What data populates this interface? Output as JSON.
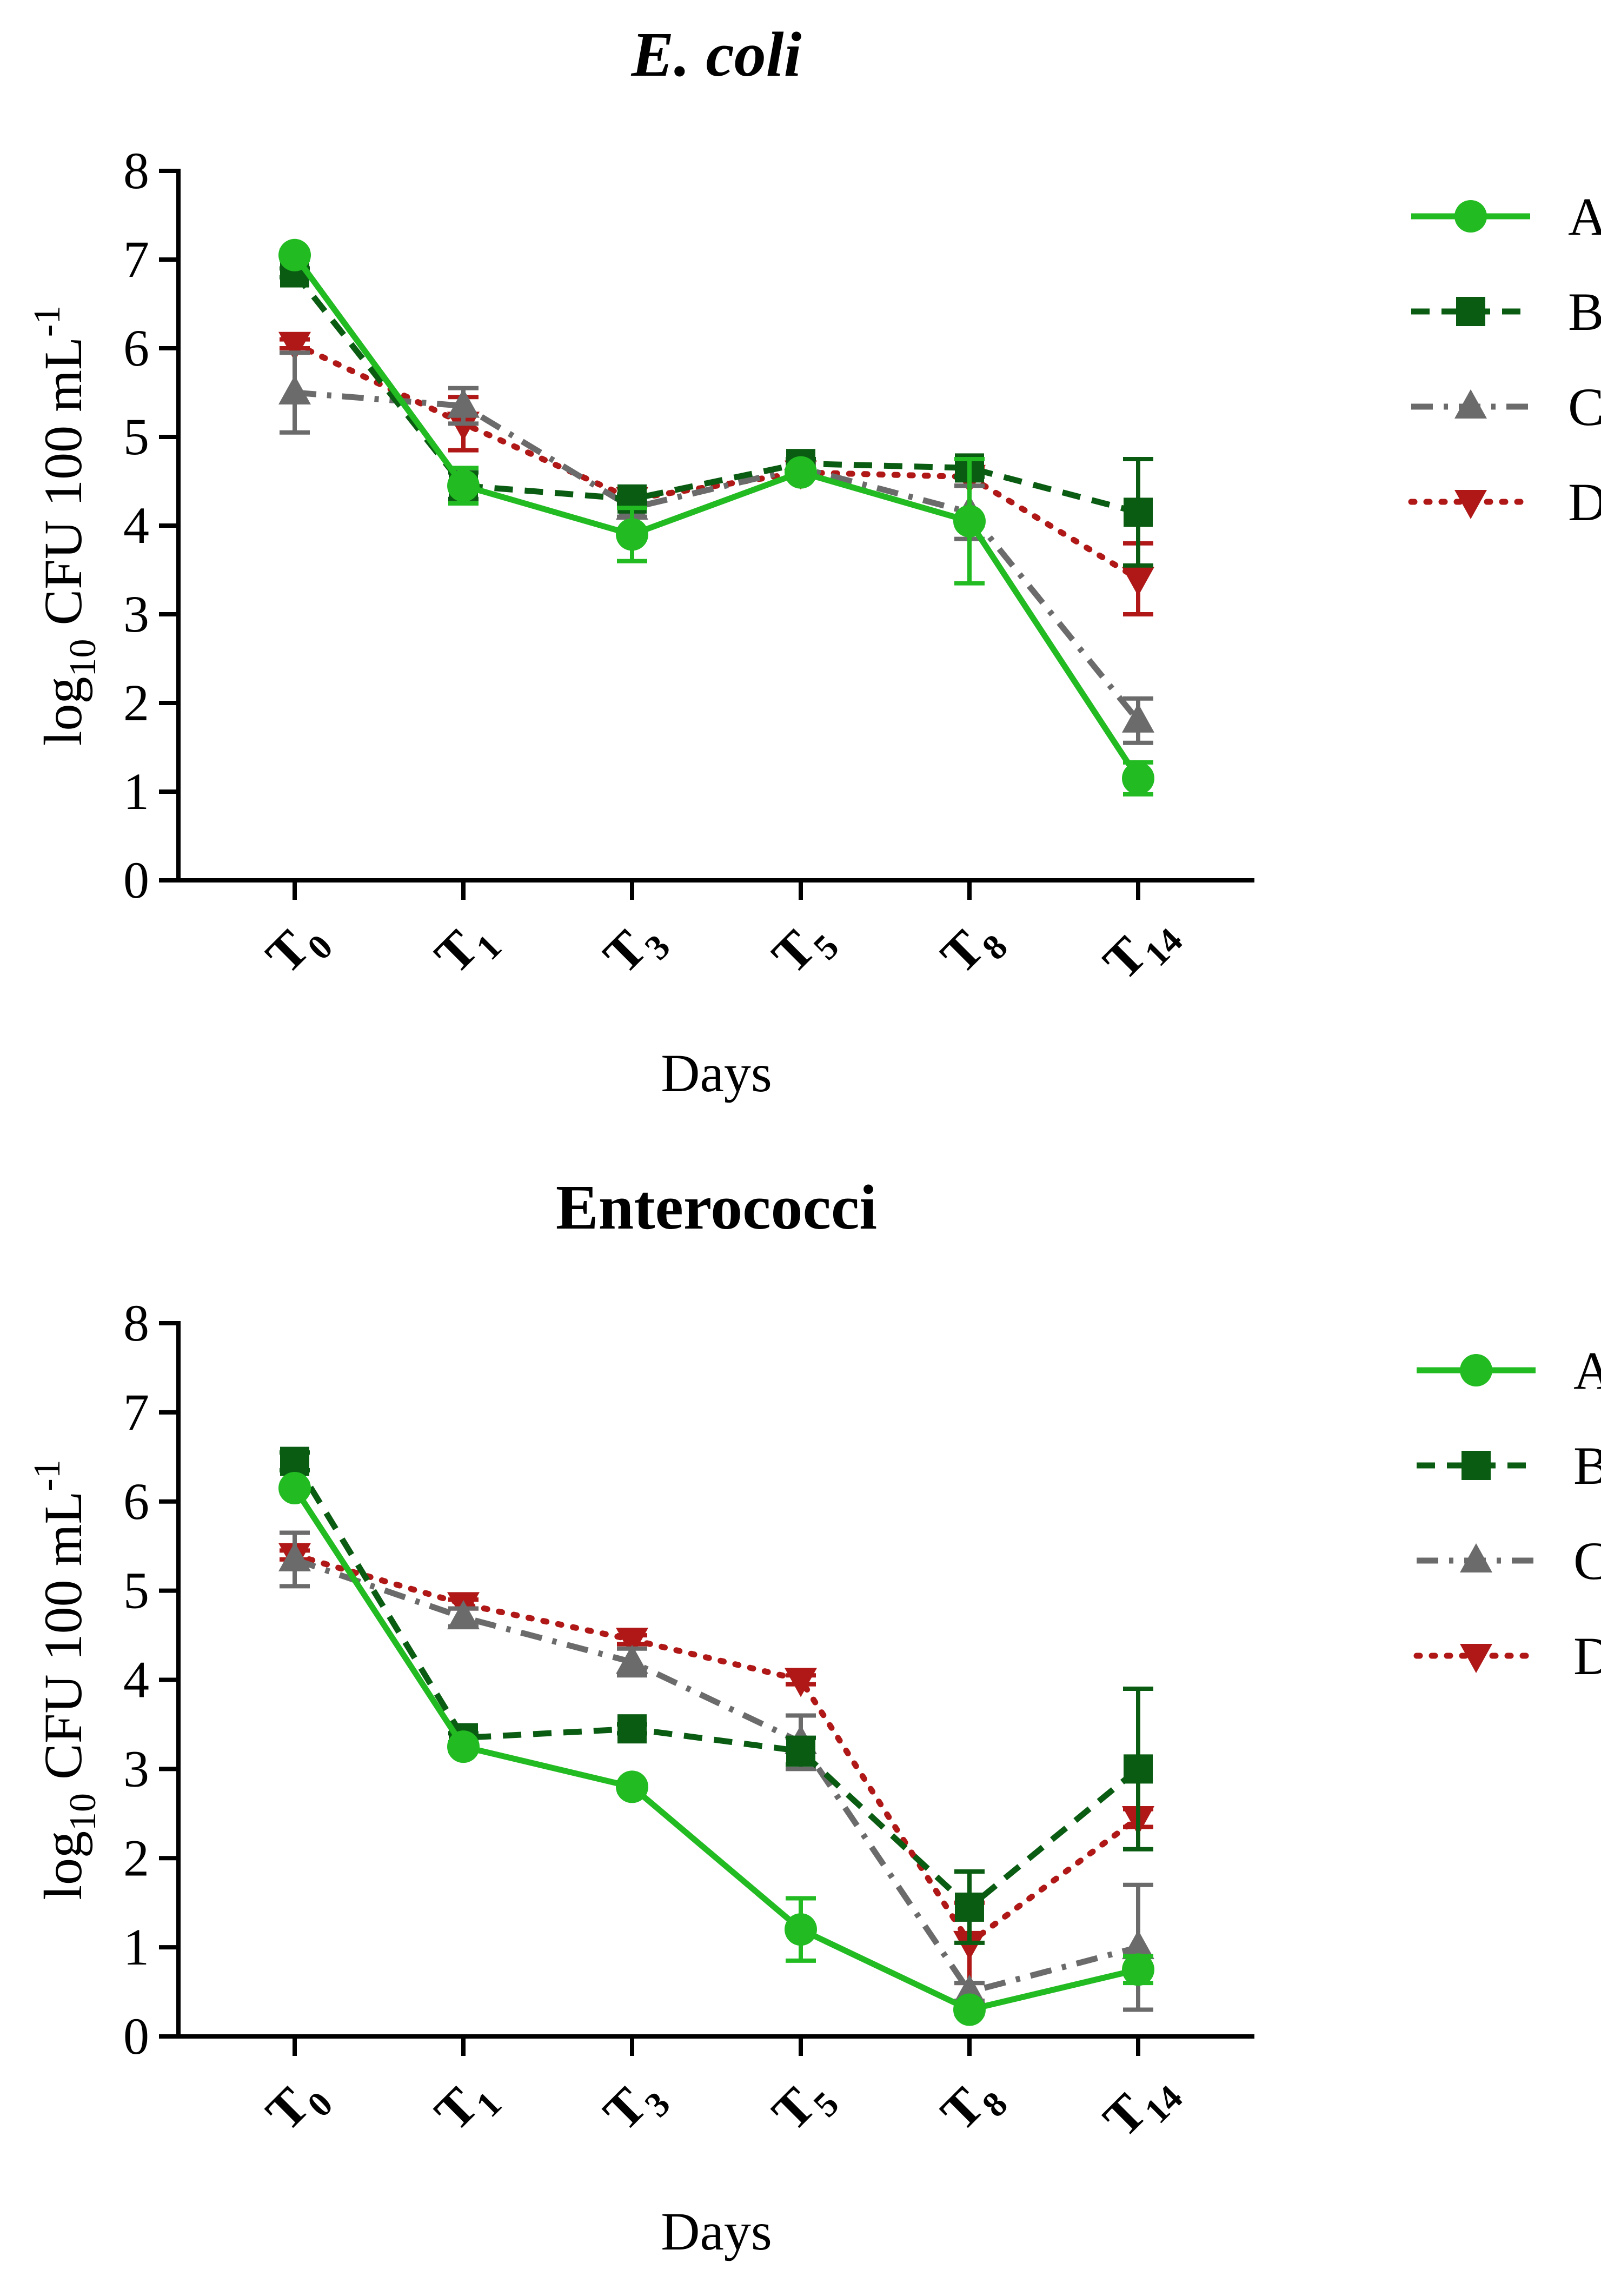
{
  "chart_data": [
    {
      "type": "line",
      "title": "E. coli",
      "title_italic": true,
      "xlabel": "Days",
      "ylabel": "log10 CFU 100 mL-1",
      "ylabel_parts": {
        "pre": "log",
        "sub": "10",
        "mid": " CFU 100 mL",
        "sup": "-1"
      },
      "ylim": [
        0,
        8
      ],
      "yticks": [
        "0",
        "1",
        "2",
        "3",
        "4",
        "5",
        "6",
        "7",
        "8"
      ],
      "categories": [
        {
          "base": "T",
          "sub": "0"
        },
        {
          "base": "T",
          "sub": "1"
        },
        {
          "base": "T",
          "sub": "3"
        },
        {
          "base": "T",
          "sub": "5"
        },
        {
          "base": "T",
          "sub": "8"
        },
        {
          "base": "T",
          "sub": "14"
        }
      ],
      "legend_position": "right",
      "series": [
        {
          "name": "A",
          "color": "#22bb22",
          "dash": "solid",
          "marker": "circle",
          "values": [
            7.05,
            4.45,
            3.9,
            4.6,
            4.05,
            1.15
          ],
          "errors": [
            0.05,
            0.2,
            0.3,
            0.05,
            0.7,
            0.18
          ]
        },
        {
          "name": "B",
          "color": "#0a5c12",
          "dash": "dash",
          "marker": "square",
          "values": [
            6.85,
            4.45,
            4.3,
            4.7,
            4.65,
            4.15
          ],
          "errors": [
            0.05,
            0.15,
            0.05,
            0.05,
            0.1,
            0.6
          ]
        },
        {
          "name": "C",
          "color": "#6b6b6b",
          "dash": "dashdot",
          "marker": "triangle-up",
          "values": [
            5.5,
            5.35,
            4.2,
            4.65,
            4.15,
            1.8
          ],
          "errors": [
            0.45,
            0.2,
            0.1,
            0.05,
            0.3,
            0.25
          ]
        },
        {
          "name": "D",
          "color": "#b01818",
          "dash": "dot",
          "marker": "triangle-down",
          "values": [
            6.05,
            5.15,
            4.3,
            4.6,
            4.55,
            3.4
          ],
          "errors": [
            0.05,
            0.3,
            0.05,
            0.05,
            0.1,
            0.4
          ]
        }
      ]
    },
    {
      "type": "line",
      "title": "Enterococci",
      "title_italic": false,
      "xlabel": "Days",
      "ylabel": "log10 CFU 100 mL-1",
      "ylabel_parts": {
        "pre": "log",
        "sub": "10",
        "mid": " CFU 100 mL",
        "sup": "-1"
      },
      "ylim": [
        0,
        8
      ],
      "yticks": [
        "0",
        "1",
        "2",
        "3",
        "4",
        "5",
        "6",
        "7",
        "8"
      ],
      "categories": [
        {
          "base": "T",
          "sub": "0"
        },
        {
          "base": "T",
          "sub": "1"
        },
        {
          "base": "T",
          "sub": "3"
        },
        {
          "base": "T",
          "sub": "5"
        },
        {
          "base": "T",
          "sub": "8"
        },
        {
          "base": "T",
          "sub": "14"
        }
      ],
      "legend_position": "right",
      "series": [
        {
          "name": "A",
          "color": "#22bb22",
          "dash": "solid",
          "marker": "circle",
          "values": [
            6.15,
            3.25,
            2.8,
            1.2,
            0.3,
            0.75
          ],
          "errors": [
            0.05,
            0.05,
            0.05,
            0.35,
            0.05,
            0.15
          ]
        },
        {
          "name": "B",
          "color": "#0a5c12",
          "dash": "dash",
          "marker": "square",
          "values": [
            6.45,
            3.35,
            3.45,
            3.2,
            1.45,
            3.0
          ],
          "errors": [
            0.1,
            0.05,
            0.05,
            0.15,
            0.4,
            0.9
          ]
        },
        {
          "name": "C",
          "color": "#6b6b6b",
          "dash": "dashdot",
          "marker": "triangle-up",
          "values": [
            5.35,
            4.7,
            4.2,
            3.3,
            0.5,
            1.0
          ],
          "errors": [
            0.3,
            0.1,
            0.15,
            0.3,
            0.1,
            0.7
          ]
        },
        {
          "name": "D",
          "color": "#b01818",
          "dash": "dot",
          "marker": "triangle-down",
          "values": [
            5.4,
            4.85,
            4.45,
            4.0,
            1.05,
            2.45
          ],
          "errors": [
            0.05,
            0.05,
            0.05,
            0.05,
            0.45,
            0.1
          ]
        }
      ]
    }
  ]
}
